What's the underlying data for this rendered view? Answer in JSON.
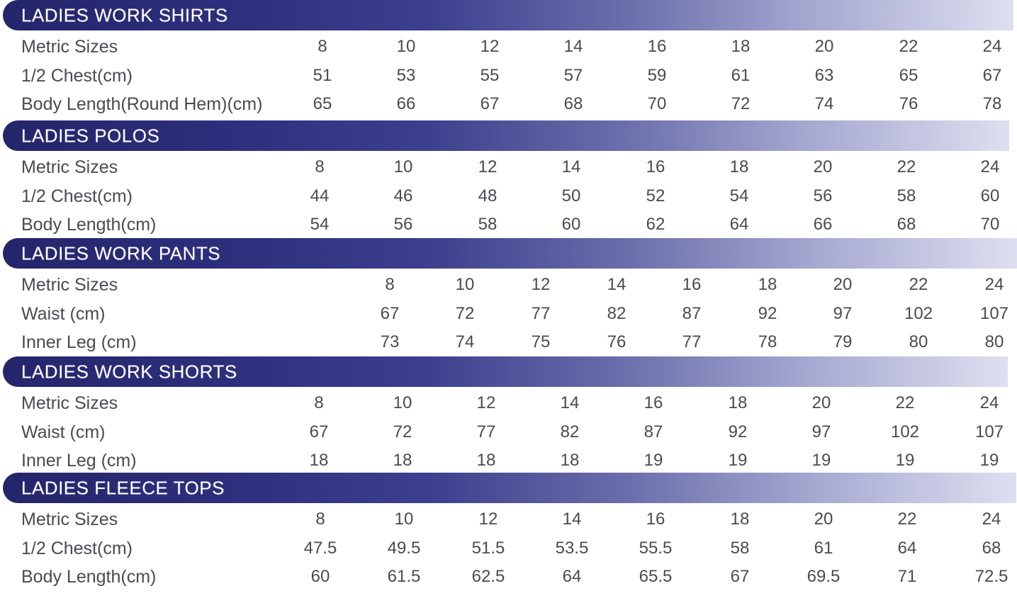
{
  "tables": [
    {
      "title": "LADIES WORK SHIRTS",
      "rows": [
        {
          "label": "Metric Sizes",
          "values": [
            "8",
            "10",
            "12",
            "14",
            "16",
            "18",
            "20",
            "22",
            "24"
          ]
        },
        {
          "label": "1/2 Chest(cm)",
          "values": [
            "51",
            "53",
            "55",
            "57",
            "59",
            "61",
            "63",
            "65",
            "67"
          ]
        },
        {
          "label": "Body Length(Round Hem)(cm)",
          "values": [
            "65",
            "66",
            "67",
            "68",
            "70",
            "72",
            "74",
            "76",
            "78"
          ]
        }
      ]
    },
    {
      "title": "LADIES POLOS",
      "rows": [
        {
          "label": "Metric Sizes",
          "values": [
            "8",
            "10",
            "12",
            "14",
            "16",
            "18",
            "20",
            "22",
            "24"
          ]
        },
        {
          "label": "1/2 Chest(cm)",
          "values": [
            "44",
            "46",
            "48",
            "50",
            "52",
            "54",
            "56",
            "58",
            "60"
          ]
        },
        {
          "label": "Body Length(cm)",
          "values": [
            "54",
            "56",
            "58",
            "60",
            "62",
            "64",
            "66",
            "68",
            "70"
          ]
        }
      ]
    },
    {
      "title": "LADIES WORK PANTS",
      "rows": [
        {
          "label": "Metric Sizes",
          "values": [
            "8",
            "10",
            "12",
            "14",
            "16",
            "18",
            "20",
            "22",
            "24"
          ]
        },
        {
          "label": "Waist (cm)",
          "values": [
            "67",
            "72",
            "77",
            "82",
            "87",
            "92",
            "97",
            "102",
            "107"
          ]
        },
        {
          "label": "Inner Leg (cm)",
          "values": [
            "73",
            "74",
            "75",
            "76",
            "77",
            "78",
            "79",
            "80",
            "80"
          ]
        }
      ]
    },
    {
      "title": "LADIES WORK SHORTS",
      "rows": [
        {
          "label": "Metric Sizes",
          "values": [
            "8",
            "10",
            "12",
            "14",
            "16",
            "18",
            "20",
            "22",
            "24"
          ]
        },
        {
          "label": "Waist (cm)",
          "values": [
            "67",
            "72",
            "77",
            "82",
            "87",
            "92",
            "97",
            "102",
            "107"
          ]
        },
        {
          "label": "Inner Leg (cm)",
          "values": [
            "18",
            "18",
            "18",
            "18",
            "19",
            "19",
            "19",
            "19",
            "19"
          ]
        }
      ]
    },
    {
      "title": "LADIES FLEECE TOPS",
      "rows": [
        {
          "label": "Metric Sizes",
          "values": [
            "8",
            "10",
            "12",
            "14",
            "16",
            "18",
            "20",
            "22",
            "24"
          ]
        },
        {
          "label": "1/2 Chest(cm)",
          "values": [
            "47.5",
            "49.5",
            "51.5",
            "53.5",
            "55.5",
            "58",
            "61",
            "64",
            "68"
          ]
        },
        {
          "label": "Body Length(cm)",
          "values": [
            "60",
            "61.5",
            "62.5",
            "64",
            "65.5",
            "67",
            "69.5",
            "71",
            "72.5"
          ]
        }
      ]
    }
  ]
}
